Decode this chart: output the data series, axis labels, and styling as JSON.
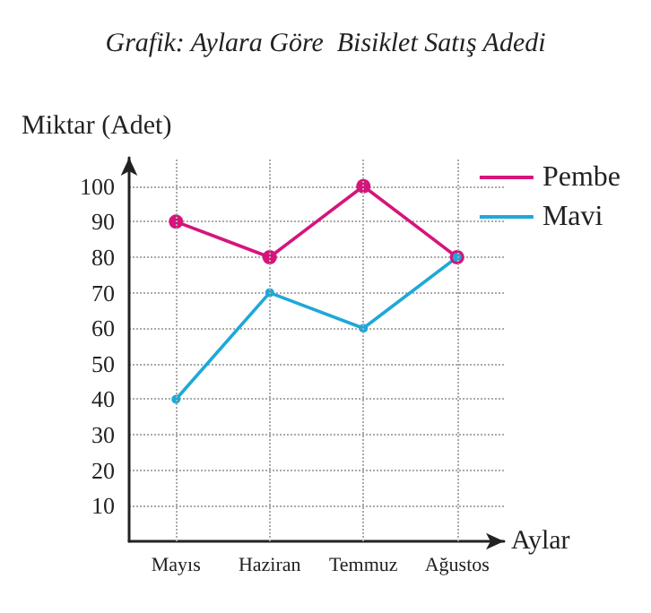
{
  "chart_data": {
    "type": "line",
    "title": "Grafik: Aylara Göre  Bisiklet Satış Adedi",
    "xlabel": "Aylar",
    "ylabel": "Miktar (Adet)",
    "categories": [
      "Mayıs",
      "Haziran",
      "Temmuz",
      "Ağustos"
    ],
    "series": [
      {
        "name": "Pembe",
        "color": "#d6147c",
        "values": [
          90,
          80,
          100,
          80
        ]
      },
      {
        "name": "Mavi",
        "color": "#1ea8d8",
        "values": [
          40,
          70,
          60,
          80
        ]
      }
    ],
    "ylim": [
      0,
      108
    ],
    "yticks": [
      10,
      20,
      30,
      40,
      50,
      60,
      70,
      80,
      90,
      100
    ],
    "grid": true,
    "legend": "top right",
    "marker": "circle",
    "line_style": "solid"
  }
}
